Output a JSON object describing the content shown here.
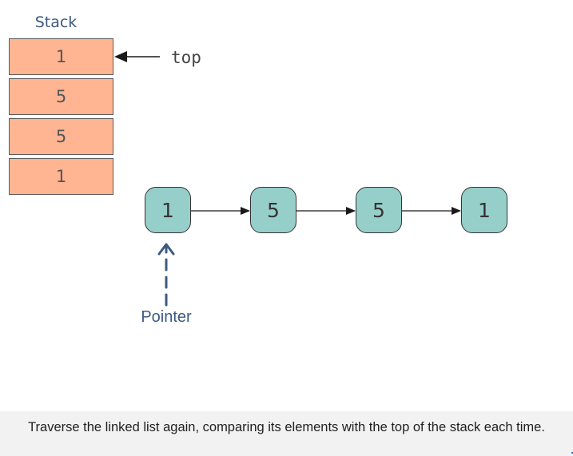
{
  "stack": {
    "title": "Stack",
    "cells": [
      "1",
      "5",
      "5",
      "1"
    ],
    "top_label": "top"
  },
  "linked_list": {
    "nodes": [
      "1",
      "5",
      "5",
      "1"
    ]
  },
  "pointer": {
    "label": "Pointer",
    "points_to_node_index": 0
  },
  "caption": {
    "text": "Traverse the linked list again, comparing its elements with the top of the stack each time."
  },
  "colors": {
    "stack_cell_fill": "#ffb492",
    "node_fill": "#96cfca",
    "label_color": "#3d5a80",
    "caption_bg": "#f2f2f2"
  }
}
